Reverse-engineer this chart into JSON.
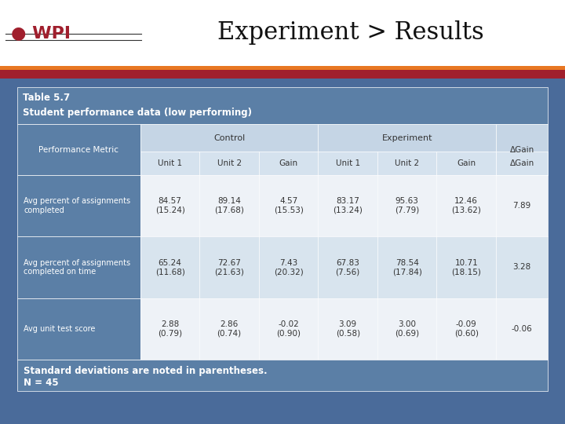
{
  "title": "Experiment > Results",
  "table_title_line1": "Table 5.7",
  "table_title_line2": "Student performance data (low performing)",
  "footer_line1": "Standard deviations are noted in parentheses.",
  "footer_line2": "N = 45",
  "col_headers_row2": [
    "Unit 1",
    "Unit 2",
    "Gain",
    "Unit 1",
    "Unit 2",
    "Gain",
    "ΔGain"
  ],
  "rows": [
    {
      "metric": "Avg percent of assignments\ncompleted",
      "values": [
        "84.57\n(15.24)",
        "89.14\n(17.68)",
        "4.57\n(15.53)",
        "83.17\n(13.24)",
        "95.63\n(7.79)",
        "12.46\n(13.62)",
        "7.89"
      ]
    },
    {
      "metric": "Avg percent of assignments\ncompleted on time",
      "values": [
        "65.24\n(11.68)",
        "72.67\n(21.63)",
        "7.43\n(20.32)",
        "67.83\n(7.56)",
        "78.54\n(17.84)",
        "10.71\n(18.15)",
        "3.28"
      ]
    },
    {
      "metric": "Avg unit test score",
      "values": [
        "2.88\n(0.79)",
        "2.86\n(0.74)",
        "-0.02\n(0.90)",
        "3.09\n(0.58)",
        "3.00\n(0.69)",
        "-0.09\n(0.60)",
        "-0.06"
      ]
    }
  ],
  "colors": {
    "white": "#ffffff",
    "wpi_red": "#A01F2D",
    "wpi_orange": "#E87722",
    "outer_bg": "#4A6B9A",
    "medium_blue": "#5B7FA6",
    "header_row_bg": "#C5D5E5",
    "subheader_bg": "#D5E2EE",
    "cell_white": "#EEF2F7",
    "cell_alt": "#D8E4EE",
    "dark_text": "#333333",
    "white_text": "#ffffff"
  },
  "fig_width": 7.2,
  "fig_height": 5.4,
  "dpi": 100
}
